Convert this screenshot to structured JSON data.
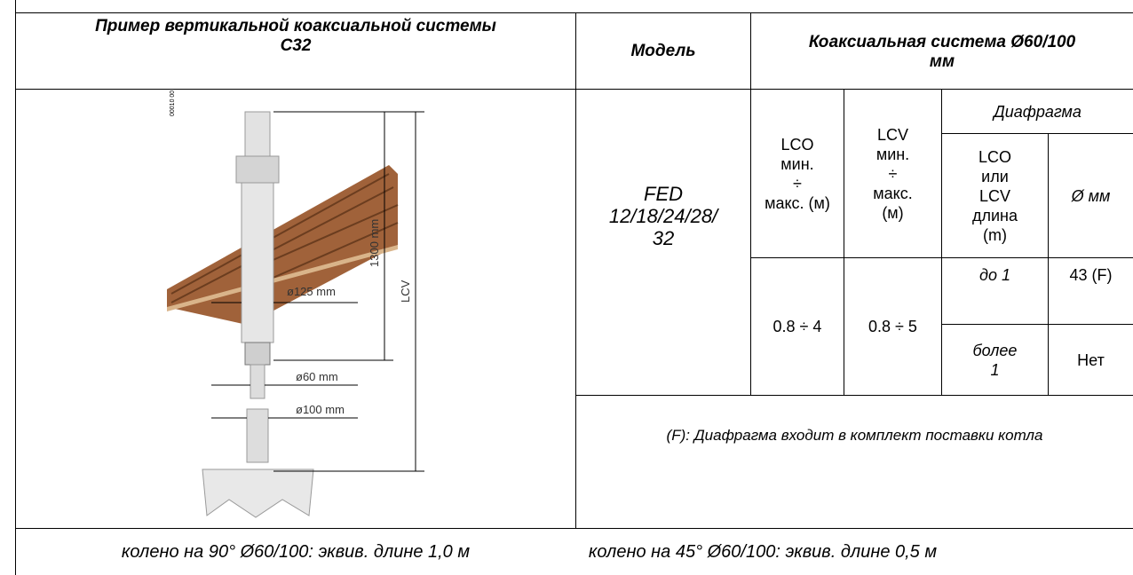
{
  "header": {
    "example": "Пример вертикальной коаксиальной системы\nC32",
    "model": "Модель",
    "system": "Коаксиальная система Ø60/100\nмм"
  },
  "diagram": {
    "code": "00010 00",
    "d125": "ø125 mm",
    "h1300": "1300 mm",
    "lcv": "LCV",
    "d60": "ø60 mm",
    "d100": "ø100 mm"
  },
  "table": {
    "model_name": "FED\n12/18/24/28/\n32",
    "lco_head": "LCO\nмин.\n÷\nмакс. (м)",
    "lcv_head": "LCV\nмин.\n÷\nмакс.\n(м)",
    "diaphragm": "Диафрагма",
    "length_head": "LCO\nили\nLCV\nдлина\n(m)",
    "diam_head": "Ø мм",
    "lco_range": "0.8 ÷ 4",
    "lcv_range": "0.8 ÷ 5",
    "rows": [
      [
        "до 1",
        "43 (F)"
      ],
      [
        "более\n1",
        "Нет"
      ]
    ],
    "note": "(F): Диафрагма входит в комплект поставки котла"
  },
  "footer": {
    "elbow90": "колено на 90° Ø60/100: эквив. длине 1,0 м",
    "elbow45": "колено на 45° Ø60/100: эквив. длине 0,5 м"
  }
}
